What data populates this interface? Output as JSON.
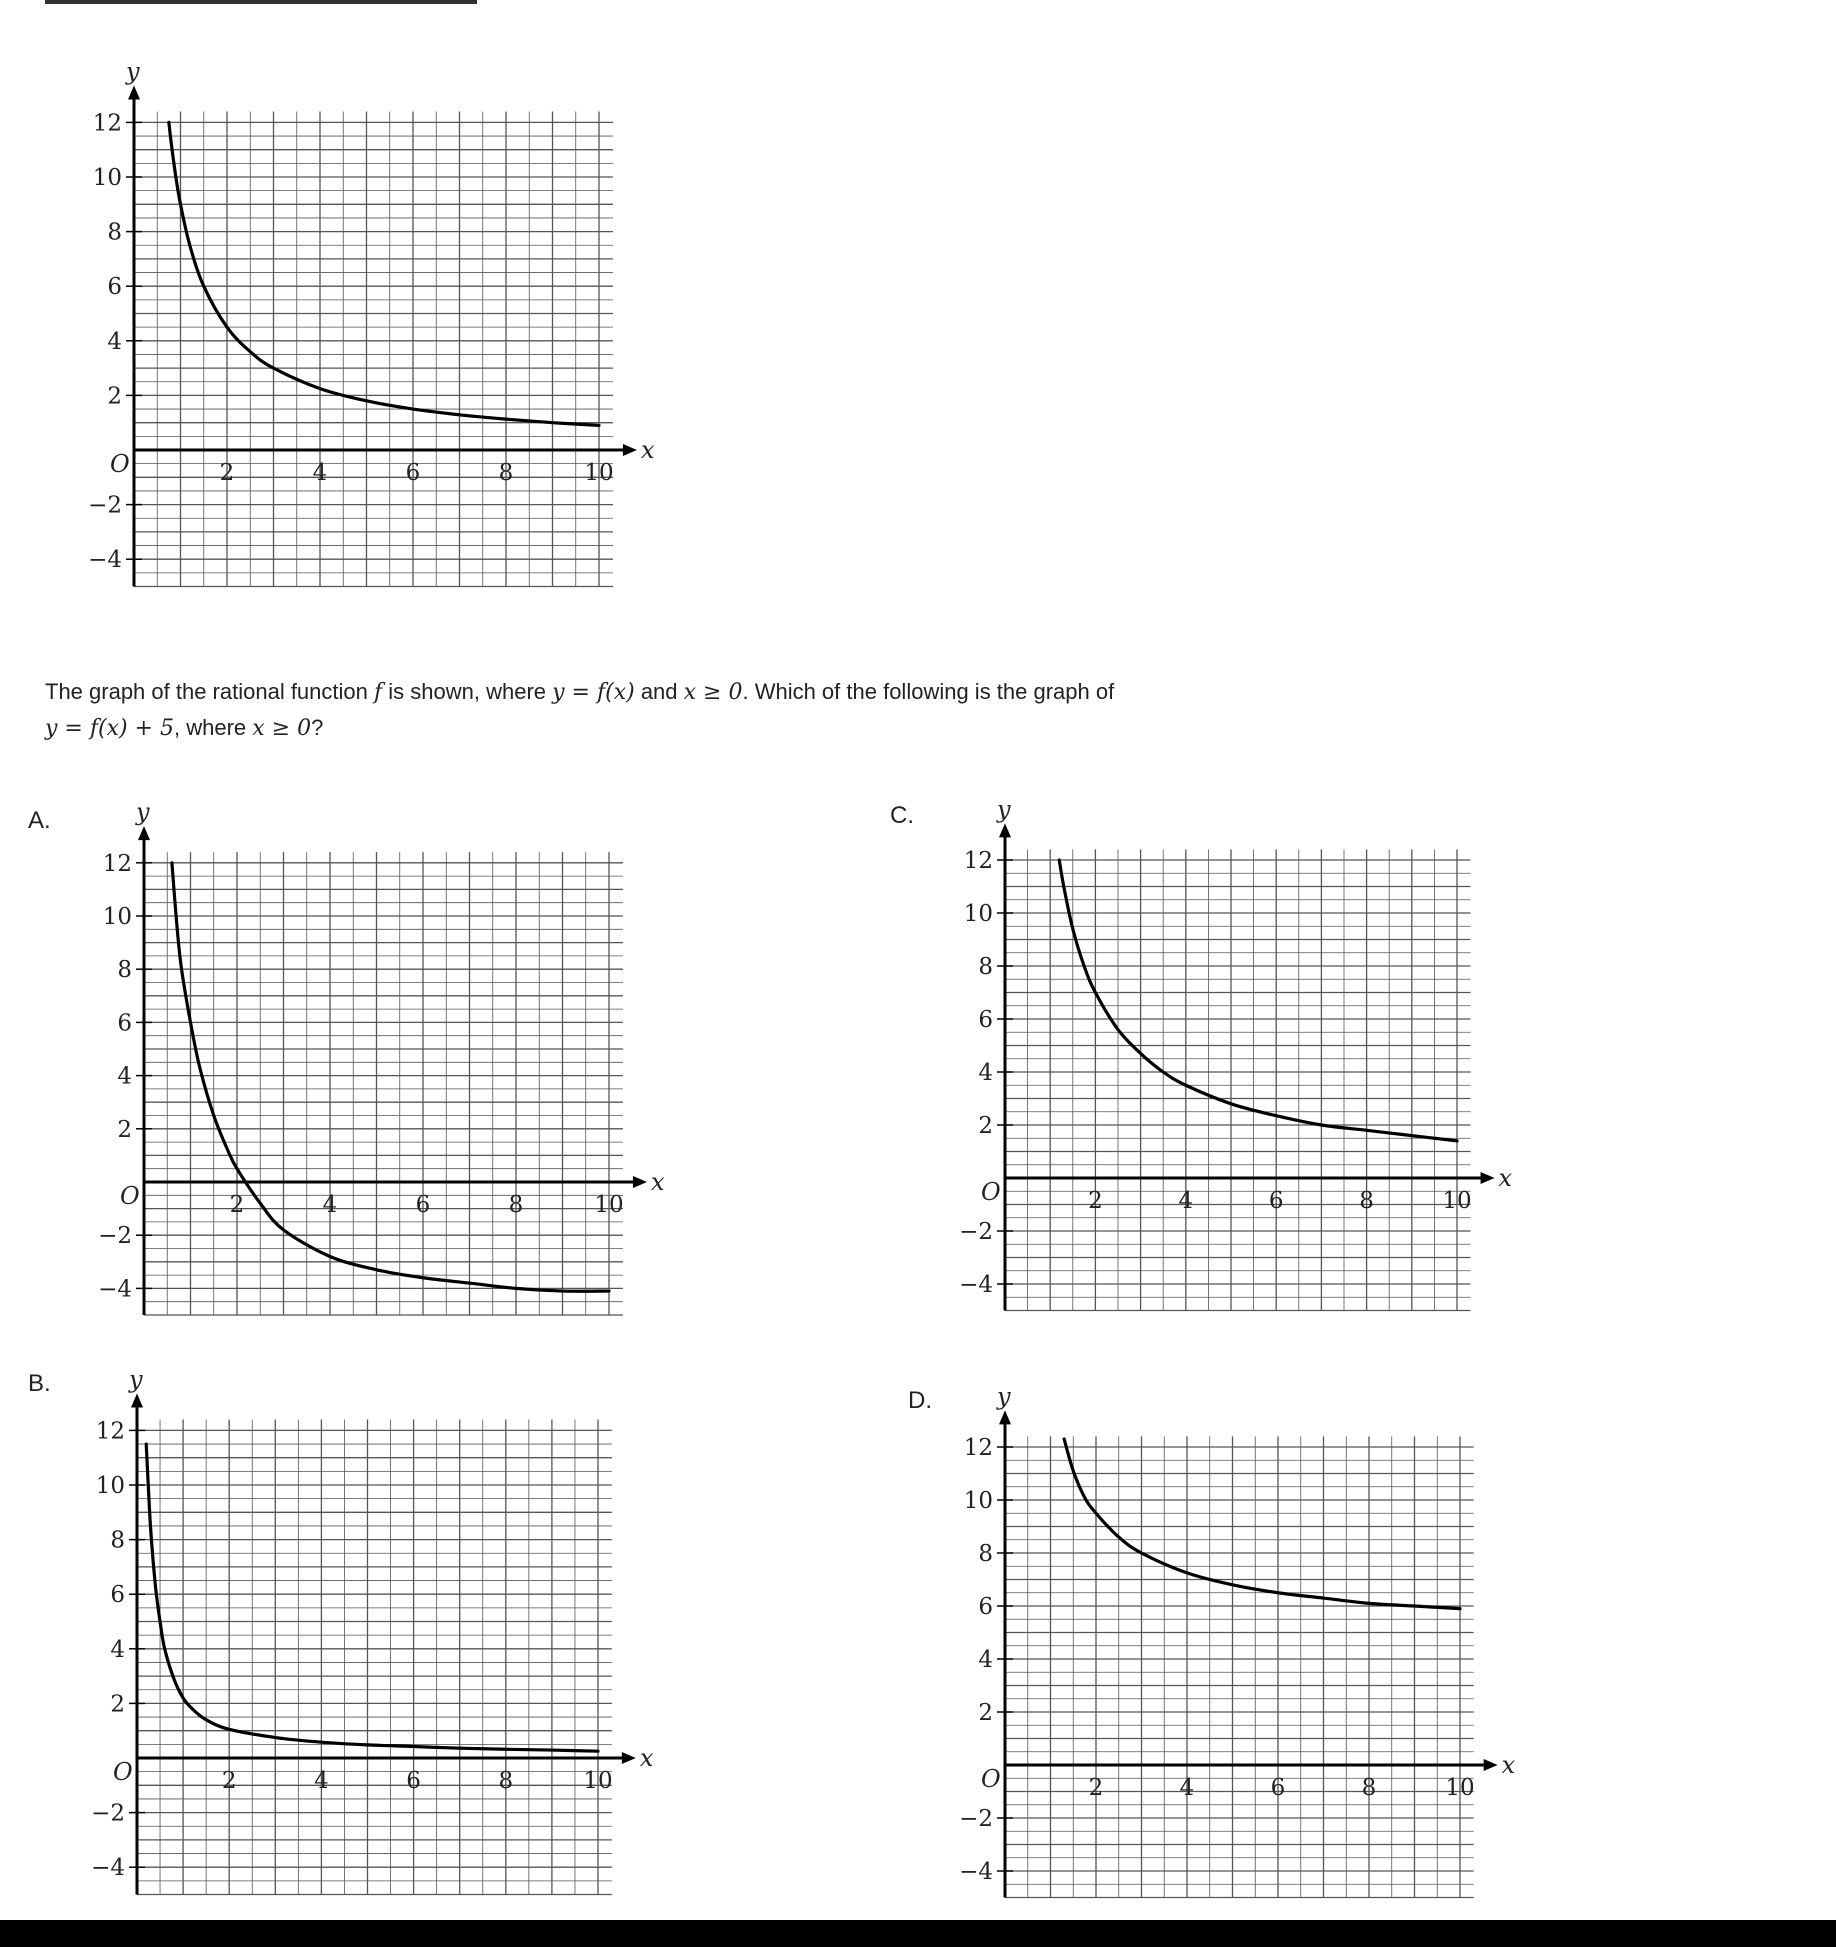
{
  "question": {
    "line1": [
      {
        "t": "The graph of the rational function ",
        "m": false
      },
      {
        "t": "f",
        "m": true
      },
      {
        "t": " is shown, where ",
        "m": false
      },
      {
        "t": "y = f(x)",
        "m": true
      },
      {
        "t": " and ",
        "m": false
      },
      {
        "t": "x ≥ 0",
        "m": true
      },
      {
        "t": ". Which of the following is the graph of",
        "m": false
      }
    ],
    "line2": [
      {
        "t": "y = f(x) + 5",
        "m": true
      },
      {
        "t": ", where ",
        "m": false
      },
      {
        "t": "x ≥ 0",
        "m": true
      },
      {
        "t": "?",
        "m": false
      }
    ]
  },
  "choice_labels": {
    "a": "A.",
    "b": "B.",
    "c": "C.",
    "d": "D."
  },
  "colors": {
    "grid": "#555555",
    "axis": "#000000",
    "curve": "#000000"
  },
  "chart_data": [
    {
      "id": "given",
      "type": "line",
      "xlabel": "y_axis_hidden_fix",
      "axis_names": {
        "x": "x",
        "y": "y"
      },
      "origin_label": "O",
      "xlim": [
        0,
        10.3
      ],
      "ylim": [
        -5,
        12.4
      ],
      "x_ticks": [
        2,
        4,
        6,
        8,
        10
      ],
      "y_ticks": [
        -4,
        -2,
        2,
        4,
        6,
        8,
        10,
        12
      ],
      "x_tick_labels": [
        "2",
        "4",
        "6",
        "8",
        "10"
      ],
      "y_tick_labels": [
        "−4",
        "−2",
        "2",
        "4",
        "6",
        "8",
        "10",
        "12"
      ],
      "grid": true,
      "minor_grid_step": 0.5,
      "series": [
        {
          "x": [
            0.75,
            0.8,
            0.9,
            1,
            1.2,
            1.5,
            2,
            2.5,
            3,
            4,
            5,
            6,
            7,
            8,
            9,
            10
          ],
          "y": [
            12,
            11.25,
            10,
            9,
            7.5,
            6,
            4.5,
            3.6,
            3,
            2.25,
            1.8,
            1.5,
            1.29,
            1.13,
            1,
            0.9
          ]
        }
      ]
    },
    {
      "id": "A",
      "type": "line",
      "axis_names": {
        "x": "x",
        "y": "y"
      },
      "origin_label": "O",
      "xlim": [
        0,
        10.3
      ],
      "ylim": [
        -5,
        12.4
      ],
      "x_ticks": [
        2,
        4,
        6,
        8,
        10
      ],
      "y_ticks": [
        -4,
        -2,
        2,
        4,
        6,
        8,
        10,
        12
      ],
      "x_tick_labels": [
        "2",
        "4",
        "6",
        "8",
        "10"
      ],
      "y_tick_labels": [
        "−4",
        "−2",
        "2",
        "4",
        "6",
        "8",
        "10",
        "12"
      ],
      "grid": true,
      "minor_grid_step": 0.5,
      "series": [
        {
          "x": [
            0.6,
            0.7,
            0.8,
            1,
            1.2,
            1.5,
            1.8,
            2,
            2.5,
            3,
            4,
            5,
            6,
            7,
            8,
            9,
            10
          ],
          "y": [
            12,
            9.8,
            8.1,
            6,
            4.3,
            2.5,
            1.2,
            0.5,
            -0.8,
            -1.8,
            -2.8,
            -3.3,
            -3.6,
            -3.8,
            -4,
            -4.1,
            -4.1
          ]
        }
      ]
    },
    {
      "id": "B",
      "type": "line",
      "axis_names": {
        "x": "x",
        "y": "y"
      },
      "origin_label": "O",
      "xlim": [
        0,
        10.3
      ],
      "ylim": [
        -5,
        12.4
      ],
      "x_ticks": [
        2,
        4,
        6,
        8,
        10
      ],
      "y_ticks": [
        -4,
        -2,
        2,
        4,
        6,
        8,
        10,
        12
      ],
      "x_tick_labels": [
        "2",
        "4",
        "6",
        "8",
        "10"
      ],
      "y_tick_labels": [
        "−4",
        "−2",
        "2",
        "4",
        "6",
        "8",
        "10",
        "12"
      ],
      "grid": true,
      "minor_grid_step": 0.5,
      "series": [
        {
          "x": [
            0.2,
            0.25,
            0.3,
            0.4,
            0.5,
            0.6,
            0.8,
            1,
            1.2,
            1.5,
            2,
            3,
            4,
            5,
            6,
            7,
            8,
            9,
            10
          ],
          "y": [
            11.5,
            9.8,
            8.3,
            6.3,
            5,
            4,
            2.9,
            2.2,
            1.8,
            1.4,
            1.05,
            0.75,
            0.58,
            0.48,
            0.42,
            0.36,
            0.32,
            0.29,
            0.25
          ]
        }
      ]
    },
    {
      "id": "C",
      "type": "line",
      "axis_names": {
        "x": "x",
        "y": "y"
      },
      "origin_label": "O",
      "xlim": [
        0,
        10.3
      ],
      "ylim": [
        -5,
        12.4
      ],
      "x_ticks": [
        2,
        4,
        6,
        8,
        10
      ],
      "y_ticks": [
        -4,
        -2,
        2,
        4,
        6,
        8,
        10,
        12
      ],
      "x_tick_labels": [
        "2",
        "4",
        "6",
        "8",
        "10"
      ],
      "y_tick_labels": [
        "−4",
        "−2",
        "2",
        "4",
        "6",
        "8",
        "10",
        "12"
      ],
      "grid": true,
      "minor_grid_step": 0.5,
      "series": [
        {
          "x": [
            1.2,
            1.3,
            1.5,
            1.75,
            2,
            2.5,
            3,
            3.5,
            4,
            5,
            6,
            7,
            8,
            9,
            10
          ],
          "y": [
            12,
            11,
            9.4,
            8,
            7,
            5.6,
            4.7,
            4,
            3.5,
            2.8,
            2.35,
            2,
            1.8,
            1.6,
            1.4
          ]
        }
      ]
    },
    {
      "id": "D",
      "type": "line",
      "axis_names": {
        "x": "x",
        "y": "y"
      },
      "origin_label": "O",
      "xlim": [
        0,
        10.3
      ],
      "ylim": [
        -5,
        12.4
      ],
      "x_ticks": [
        2,
        4,
        6,
        8,
        10
      ],
      "y_ticks": [
        -4,
        -2,
        2,
        4,
        6,
        8,
        10,
        12
      ],
      "x_tick_labels": [
        "2",
        "4",
        "6",
        "8",
        "10"
      ],
      "y_tick_labels": [
        "−4",
        "−2",
        "2",
        "4",
        "6",
        "8",
        "10",
        "12"
      ],
      "grid": true,
      "minor_grid_step": 0.5,
      "series": [
        {
          "x": [
            1.3,
            1.5,
            1.75,
            2,
            2.5,
            3,
            4,
            5,
            6,
            7,
            8,
            9,
            10
          ],
          "y": [
            12.3,
            11.1,
            10.1,
            9.5,
            8.6,
            8,
            7.25,
            6.8,
            6.5,
            6.3,
            6.1,
            6,
            5.9
          ]
        }
      ]
    }
  ]
}
